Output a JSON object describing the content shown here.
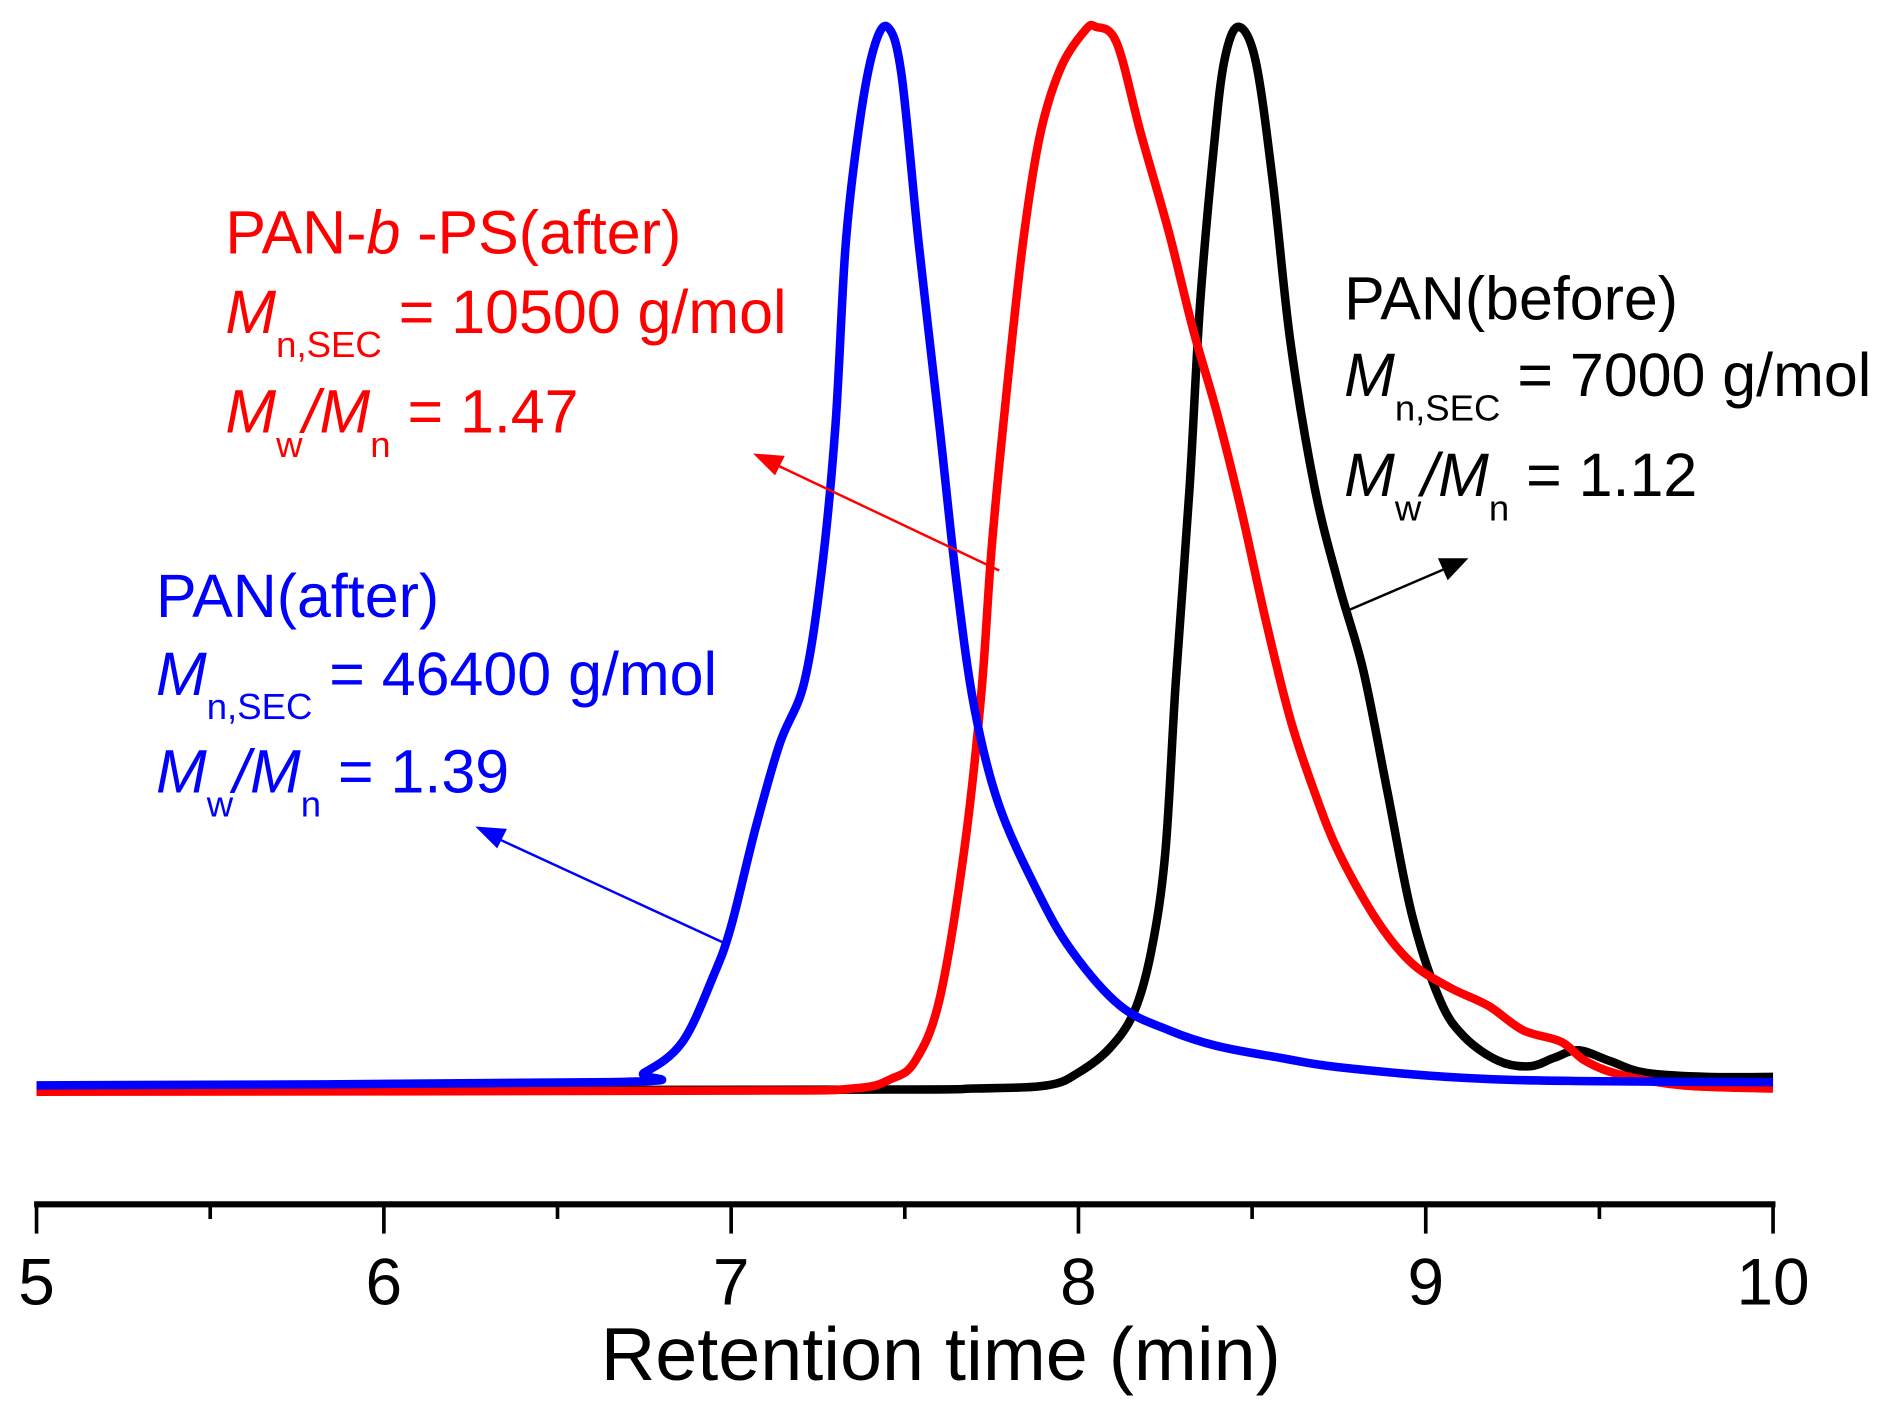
{
  "chart_data": {
    "type": "line",
    "title": "",
    "xlabel": "Retention time (min)",
    "ylabel": "",
    "xlim": [
      5,
      10
    ],
    "ylim_normalized": [
      0,
      1
    ],
    "xticks": [
      "5",
      "6",
      "7",
      "8",
      "9",
      "10"
    ],
    "grid": false,
    "series": [
      {
        "name": "PAN(after)",
        "color": "#0000ff",
        "x": [
          5.0,
          6.65,
          6.75,
          6.86,
          6.95,
          7.0,
          7.07,
          7.14,
          7.21,
          7.26,
          7.3,
          7.33,
          7.37,
          7.41,
          7.45,
          7.49,
          7.54,
          7.6,
          7.65,
          7.7,
          7.77,
          7.88,
          7.98,
          8.12,
          8.26,
          8.4,
          8.58,
          8.75,
          9.11,
          9.46,
          10.0
        ],
        "y": [
          0.003,
          0.006,
          0.015,
          0.044,
          0.107,
          0.153,
          0.245,
          0.325,
          0.382,
          0.486,
          0.623,
          0.796,
          0.91,
          0.979,
          1.0,
          0.956,
          0.796,
          0.623,
          0.474,
          0.359,
          0.268,
          0.187,
          0.13,
          0.078,
          0.055,
          0.04,
          0.029,
          0.02,
          0.01,
          0.007,
          0.006
        ]
      },
      {
        "name": "PAN-b-PS(after)",
        "color": "#ff0000",
        "x": [
          5.0,
          7.0,
          7.35,
          7.46,
          7.53,
          7.6,
          7.67,
          7.72,
          7.75,
          7.79,
          7.84,
          7.89,
          7.95,
          8.02,
          8.05,
          8.11,
          8.18,
          8.26,
          8.33,
          8.4,
          8.47,
          8.54,
          8.61,
          8.68,
          8.75,
          8.86,
          8.96,
          9.07,
          9.18,
          9.28,
          9.39,
          9.46,
          9.56,
          9.74,
          10.0
        ],
        "y": [
          -0.003,
          -0.002,
          0,
          0.009,
          0.026,
          0.084,
          0.222,
          0.371,
          0.509,
          0.646,
          0.796,
          0.899,
          0.962,
          0.997,
          1.0,
          0.985,
          0.899,
          0.807,
          0.715,
          0.635,
          0.543,
          0.44,
          0.348,
          0.279,
          0.222,
          0.158,
          0.118,
          0.095,
          0.078,
          0.055,
          0.044,
          0.026,
          0.013,
          0.003,
          0
        ]
      },
      {
        "name": "PAN(before)",
        "color": "#000000",
        "x": [
          5.0,
          7.35,
          7.7,
          7.91,
          8.0,
          8.09,
          8.16,
          8.21,
          8.25,
          8.28,
          8.32,
          8.35,
          8.39,
          8.42,
          8.46,
          8.51,
          8.56,
          8.61,
          8.68,
          8.75,
          8.82,
          8.89,
          8.96,
          9.04,
          9.11,
          9.21,
          9.3,
          9.37,
          9.44,
          9.53,
          9.63,
          9.81,
          10.0
        ],
        "y": [
          -0.002,
          -0.001,
          0,
          0.003,
          0.015,
          0.038,
          0.072,
          0.13,
          0.222,
          0.382,
          0.566,
          0.738,
          0.887,
          0.968,
          1.0,
          0.968,
          0.853,
          0.704,
          0.566,
          0.474,
          0.394,
          0.279,
          0.164,
          0.084,
          0.049,
          0.026,
          0.021,
          0.029,
          0.036,
          0.026,
          0.015,
          0.011,
          0.011
        ]
      }
    ],
    "annotations": {
      "red": {
        "title_a": "PAN-",
        "title_b": "b",
        "title_c": " -PS(after)",
        "m": "M",
        "mn_sub": "n,SEC",
        "mn_val": " = 10500 g/mol",
        "mw": "M",
        "w_sub": "w",
        "slash": "/",
        "mn2": "M",
        "n_sub": "n",
        "pdi_val": " = 1.47"
      },
      "blue": {
        "title": "PAN(after)",
        "m": "M",
        "mn_sub": "n,SEC",
        "mn_val": " = 46400 g/mol",
        "mw": "M",
        "w_sub": "w",
        "slash": "/",
        "mn2": "M",
        "n_sub": "n",
        "pdi_val": " = 1.39"
      },
      "black": {
        "title": "PAN(before)",
        "m": "M",
        "mn_sub": "n,SEC",
        "mn_val": " = 7000 g/mol",
        "mw": "M",
        "w_sub": "w",
        "slash": "/",
        "mn2": "M",
        "n_sub": "n",
        "pdi_val": " = 1.12"
      }
    }
  }
}
